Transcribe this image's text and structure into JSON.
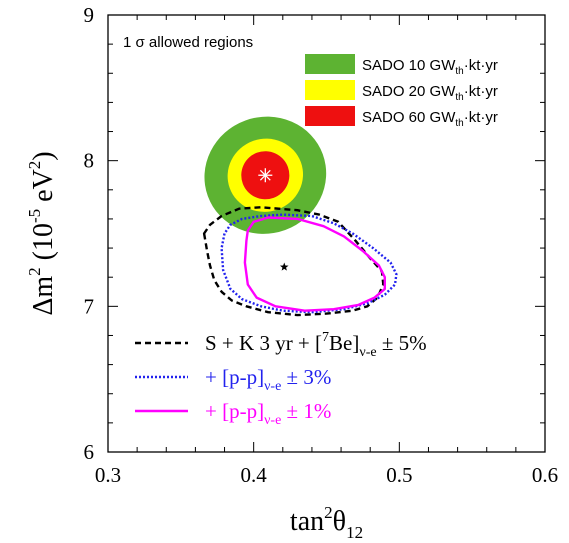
{
  "chart_data": {
    "type": "scatter",
    "xlabel": "tan²θ₁₂",
    "xlabel_parts": {
      "base": "tan",
      "sup": "2",
      "theta": "θ",
      "sub": "12"
    },
    "ylabel": "Δm² (10⁻⁵ eV²)",
    "ylabel_parts": {
      "delta_m": "Δm",
      "sup2": "2",
      "open": " (10",
      "sup_exp": "-5",
      "unit": " eV",
      "sup_unit": "2",
      "close": ")"
    },
    "xlim": [
      0.3,
      0.6
    ],
    "ylim": [
      6,
      9
    ],
    "x_ticks": [
      0.3,
      0.4,
      0.5,
      0.6
    ],
    "x_tick_labels": [
      "0.3",
      "0.4",
      "0.5",
      "0.6"
    ],
    "y_ticks": [
      6,
      7,
      8,
      9
    ],
    "y_tick_labels": [
      "6",
      "7",
      "8",
      "9"
    ],
    "grid": false,
    "panel_title": "1 σ allowed regions",
    "best_fit_sado": {
      "x": 0.408,
      "y": 7.9
    },
    "best_fit_sk": {
      "x": 0.421,
      "y": 7.27
    },
    "ellipse_center": {
      "x": 0.408,
      "y": 7.9
    },
    "ellipse_tilt_deg": -20,
    "ellipses": [
      {
        "name": "SADO 10 GW_th·kt·yr",
        "color": "#5db332",
        "semi_x": 0.042,
        "semi_y": 0.4
      },
      {
        "name": "SADO 20 GW_th·kt·yr",
        "color": "#ffff00",
        "semi_x": 0.026,
        "semi_y": 0.25
      },
      {
        "name": "SADO 60 GW_th·kt·yr",
        "color": "#ee1010",
        "semi_x": 0.0165,
        "semi_y": 0.165
      }
    ],
    "legend_sado": [
      {
        "prefix": "SADO 10 GW",
        "sub": "th",
        "suffix": "·kt·yr",
        "color": "#5db332"
      },
      {
        "prefix": "SADO 20 GW",
        "sub": "th",
        "suffix": "·kt·yr",
        "color": "#ffff00"
      },
      {
        "prefix": "SADO 60 GW",
        "sub": "th",
        "suffix": "·kt·yr",
        "color": "#ee1010"
      }
    ],
    "series": [
      {
        "name": "S + K 3 yr + [⁷Be]ν-e ± 5%",
        "color": "#000000",
        "dash": "6,4",
        "points": [
          [
            0.366,
            7.5
          ],
          [
            0.368,
            7.38
          ],
          [
            0.37,
            7.28
          ],
          [
            0.373,
            7.18
          ],
          [
            0.378,
            7.1
          ],
          [
            0.385,
            7.04
          ],
          [
            0.395,
            7.0
          ],
          [
            0.41,
            6.96
          ],
          [
            0.43,
            6.94
          ],
          [
            0.45,
            6.95
          ],
          [
            0.468,
            6.97
          ],
          [
            0.478,
            7.0
          ],
          [
            0.485,
            7.06
          ],
          [
            0.489,
            7.15
          ],
          [
            0.488,
            7.24
          ],
          [
            0.48,
            7.33
          ],
          [
            0.47,
            7.45
          ],
          [
            0.458,
            7.58
          ],
          [
            0.445,
            7.63
          ],
          [
            0.43,
            7.66
          ],
          [
            0.405,
            7.68
          ],
          [
            0.39,
            7.67
          ],
          [
            0.378,
            7.62
          ],
          [
            0.37,
            7.56
          ],
          [
            0.366,
            7.5
          ]
        ]
      },
      {
        "name": "+ [p-p]ν-e ± 3%",
        "color": "#2222ee",
        "dash": "2,2",
        "points": [
          [
            0.38,
            7.5
          ],
          [
            0.378,
            7.4
          ],
          [
            0.379,
            7.25
          ],
          [
            0.384,
            7.12
          ],
          [
            0.392,
            7.05
          ],
          [
            0.405,
            7.0
          ],
          [
            0.42,
            6.97
          ],
          [
            0.44,
            6.96
          ],
          [
            0.462,
            6.98
          ],
          [
            0.478,
            7.02
          ],
          [
            0.49,
            7.08
          ],
          [
            0.497,
            7.15
          ],
          [
            0.498,
            7.22
          ],
          [
            0.494,
            7.3
          ],
          [
            0.482,
            7.4
          ],
          [
            0.468,
            7.5
          ],
          [
            0.455,
            7.57
          ],
          [
            0.44,
            7.62
          ],
          [
            0.42,
            7.63
          ],
          [
            0.405,
            7.62
          ],
          [
            0.392,
            7.6
          ],
          [
            0.384,
            7.56
          ],
          [
            0.38,
            7.5
          ]
        ]
      },
      {
        "name": "+ [p-p]ν-e ± 1%",
        "color": "#ff00ff",
        "dash": "",
        "points": [
          [
            0.395,
            7.45
          ],
          [
            0.394,
            7.3
          ],
          [
            0.396,
            7.15
          ],
          [
            0.402,
            7.06
          ],
          [
            0.415,
            7.0
          ],
          [
            0.435,
            6.97
          ],
          [
            0.455,
            6.98
          ],
          [
            0.472,
            7.01
          ],
          [
            0.483,
            7.06
          ],
          [
            0.49,
            7.12
          ],
          [
            0.49,
            7.2
          ],
          [
            0.486,
            7.28
          ],
          [
            0.475,
            7.38
          ],
          [
            0.462,
            7.48
          ],
          [
            0.448,
            7.55
          ],
          [
            0.43,
            7.6
          ],
          [
            0.41,
            7.61
          ],
          [
            0.4,
            7.58
          ],
          [
            0.396,
            7.52
          ],
          [
            0.395,
            7.45
          ]
        ]
      }
    ],
    "legend_lines": [
      {
        "color": "#000000",
        "dash": "6,4",
        "text_color": "#000000",
        "parts": {
          "a": "S + K 3 yr + [",
          "sup": "7",
          "b": "Be]",
          "sub": "ν-e",
          "c": " ± 5%"
        }
      },
      {
        "color": "#2222ee",
        "dash": "2,2",
        "text_color": "#2222ee",
        "parts": {
          "a": "+ [p-p]",
          "sub": "ν-e",
          "c": " ± 3%"
        }
      },
      {
        "color": "#ff00ff",
        "dash": "",
        "text_color": "#ff00ff",
        "parts": {
          "a": "+ [p-p]",
          "sub": "ν-e",
          "c": " ± 1%"
        }
      }
    ]
  }
}
